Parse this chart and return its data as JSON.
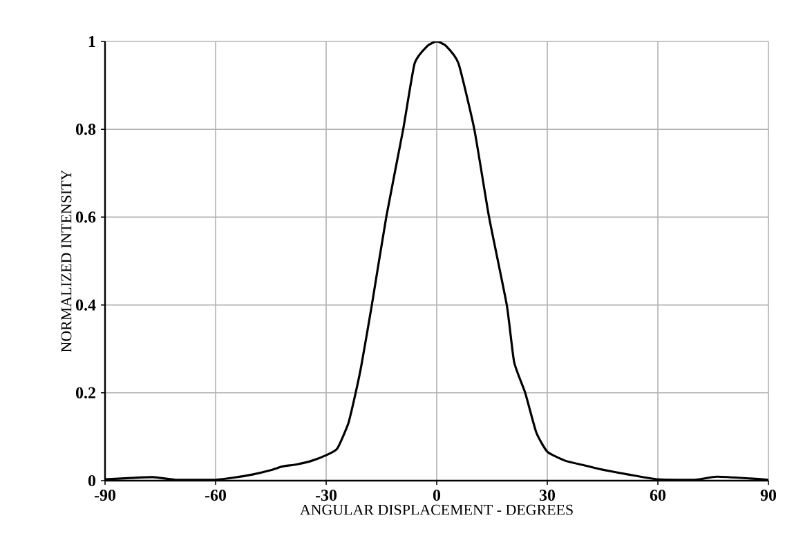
{
  "chart_data": {
    "type": "line",
    "xlabel": "ANGULAR DISPLACEMENT - DEGREES",
    "ylabel": "NORMALIZED INTENSITY",
    "xlim": [
      -90,
      90
    ],
    "ylim": [
      0,
      1
    ],
    "xticks": [
      -90,
      -60,
      -30,
      0,
      30,
      60,
      90
    ],
    "yticks": [
      0,
      0.2,
      0.4,
      0.6,
      0.8,
      1
    ],
    "grid": true,
    "series": [
      {
        "color": "#000000",
        "x": [
          -90,
          -83,
          -77,
          -71,
          -65,
          -60,
          -55,
          -50,
          -45,
          -42,
          -38,
          -34,
          -30,
          -27,
          -24,
          -22,
          -20.5,
          -17.6,
          -13.7,
          -9.1,
          -6,
          -2.5,
          0,
          2.5,
          5.9,
          10.2,
          14.2,
          19,
          21,
          24,
          27,
          30,
          35,
          40,
          45,
          52,
          60,
          70,
          76,
          85,
          90
        ],
        "values": [
          0.003,
          0.006,
          0.008,
          0.002,
          0.002,
          0.002,
          0.007,
          0.014,
          0.024,
          0.032,
          0.037,
          0.045,
          0.058,
          0.073,
          0.13,
          0.2,
          0.26,
          0.4,
          0.6,
          0.8,
          0.95,
          0.99,
          1.0,
          0.99,
          0.95,
          0.8,
          0.6,
          0.4,
          0.27,
          0.2,
          0.11,
          0.066,
          0.045,
          0.035,
          0.025,
          0.014,
          0.003,
          0.002,
          0.009,
          0.005,
          0.002
        ]
      }
    ]
  }
}
